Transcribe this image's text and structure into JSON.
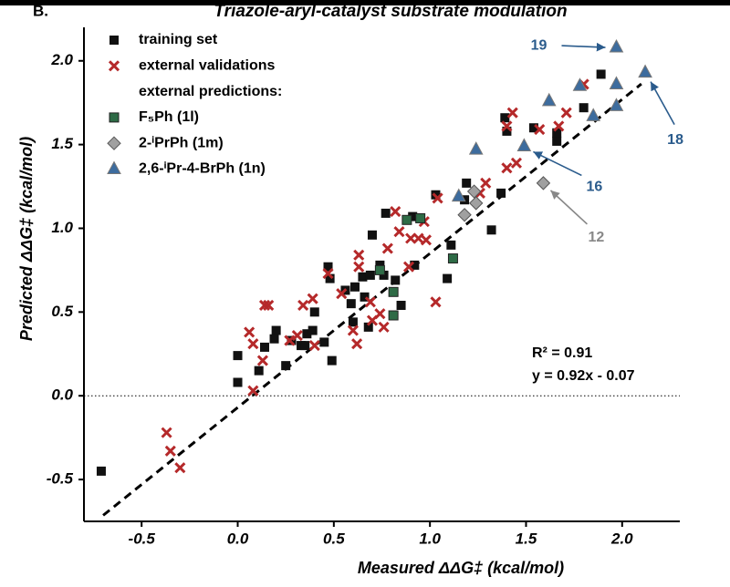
{
  "chart_data": {
    "type": "scatter",
    "panel_label": "B.",
    "title": "Triazole-aryl-catalyst substrate modulation",
    "x_label": "Measured ΔΔG‡ (kcal/mol)",
    "y_label": "Predicted ΔΔG‡ (kcal/mol)",
    "xlim": [
      -0.8,
      2.3
    ],
    "ylim": [
      -0.75,
      2.2
    ],
    "xticks": [
      -0.5,
      {
        "value": 0,
        "label": "0.0"
      },
      0.5,
      {
        "value": 1,
        "label": "1.0"
      },
      1.5,
      {
        "value": 2,
        "label": "2.0"
      }
    ],
    "yticks": [
      -0.5,
      {
        "value": 0,
        "label": "0.0"
      },
      0.5,
      {
        "value": 1,
        "label": "1.0"
      },
      1.5,
      {
        "value": 2,
        "label": "2.0"
      }
    ],
    "hline": 0,
    "fit": {
      "slope": 0.92,
      "intercept": -0.07,
      "x_range": [
        -0.7,
        2.1
      ]
    },
    "legend_subtitle": "external predictions:",
    "stats": [
      "R² = 0.91",
      "y = 0.92x - 0.07"
    ],
    "series": [
      {
        "name": "training set",
        "color": "#111111",
        "marker": "square",
        "x": [
          -0.71,
          0.0,
          0.0,
          0.11,
          0.14,
          0.19,
          0.2,
          0.25,
          0.28,
          0.33,
          0.35,
          0.36,
          0.4,
          0.39,
          0.45,
          0.47,
          0.48,
          0.49,
          0.56,
          0.59,
          0.6,
          0.61,
          0.65,
          0.66,
          0.68,
          0.69,
          0.7,
          0.74,
          0.76,
          0.82,
          0.85,
          0.91,
          0.92,
          0.77,
          1.03,
          1.09,
          1.11,
          1.19,
          1.18,
          1.32,
          1.37,
          1.39,
          1.4,
          1.54,
          1.66,
          1.66,
          1.8,
          1.89
        ],
        "values": [
          -0.45,
          0.24,
          0.08,
          0.15,
          0.29,
          0.34,
          0.39,
          0.18,
          0.33,
          0.3,
          0.3,
          0.37,
          0.5,
          0.39,
          0.32,
          0.77,
          0.7,
          0.21,
          0.63,
          0.55,
          0.44,
          0.65,
          0.71,
          0.59,
          0.41,
          0.72,
          0.96,
          0.78,
          0.72,
          0.69,
          0.54,
          1.07,
          0.78,
          1.09,
          1.2,
          0.7,
          0.9,
          1.27,
          1.17,
          0.99,
          1.21,
          1.66,
          1.58,
          1.6,
          1.52,
          1.57,
          1.72,
          1.92
        ]
      },
      {
        "name": "external validations",
        "color": "#b5292a",
        "marker": "x",
        "x": [
          -0.37,
          -0.35,
          -0.3,
          0.06,
          0.08,
          0.08,
          0.13,
          0.14,
          0.16,
          0.27,
          0.31,
          0.34,
          0.39,
          0.4,
          0.47,
          0.54,
          0.6,
          0.62,
          0.63,
          0.63,
          0.69,
          0.7,
          0.74,
          0.76,
          0.78,
          0.82,
          0.84,
          0.89,
          0.9,
          0.94,
          0.98,
          0.97,
          1.03,
          1.04,
          1.26,
          1.29,
          1.4,
          1.45,
          1.43,
          1.4,
          1.57,
          1.67,
          1.71,
          1.8
        ],
        "values": [
          -0.22,
          -0.33,
          -0.43,
          0.38,
          0.31,
          0.03,
          0.21,
          0.54,
          0.54,
          0.33,
          0.36,
          0.54,
          0.58,
          0.3,
          0.73,
          0.61,
          0.39,
          0.31,
          0.84,
          0.77,
          0.56,
          0.45,
          0.49,
          0.41,
          0.88,
          1.1,
          0.98,
          0.77,
          0.94,
          0.94,
          0.93,
          1.04,
          0.56,
          1.18,
          1.21,
          1.27,
          1.36,
          1.39,
          1.69,
          1.61,
          1.59,
          1.61,
          1.69,
          1.86
        ]
      },
      {
        "name": "F₅Ph (1l)",
        "color": "#2e6b46",
        "marker": "square",
        "x": [
          0.74,
          0.81,
          0.81,
          0.88,
          0.95,
          1.12
        ],
        "values": [
          0.75,
          0.62,
          0.48,
          1.05,
          1.06,
          0.82
        ]
      },
      {
        "name": "2-ⁱPrPh (1m)",
        "color": "#a0a0a0",
        "marker": "diamond",
        "x": [
          1.18,
          1.23,
          1.24,
          1.59
        ],
        "values": [
          1.08,
          1.22,
          1.15,
          1.27
        ]
      },
      {
        "name": "2,6-ⁱPr-4-BrPh (1n)",
        "color": "#3d6c9e",
        "marker": "triangle",
        "x": [
          1.15,
          1.24,
          1.49,
          1.62,
          1.78,
          1.85,
          1.97,
          1.97,
          1.97,
          2.12
        ],
        "values": [
          1.19,
          1.47,
          1.49,
          1.76,
          1.85,
          1.67,
          2.08,
          1.86,
          1.73,
          1.93
        ]
      }
    ],
    "annotations": [
      {
        "text": "19",
        "color": "#2a5b8c"
      },
      {
        "text": "18",
        "color": "#2a5b8c"
      },
      {
        "text": "16",
        "color": "#2a5b8c"
      },
      {
        "text": "12",
        "color": "#888888"
      }
    ]
  }
}
